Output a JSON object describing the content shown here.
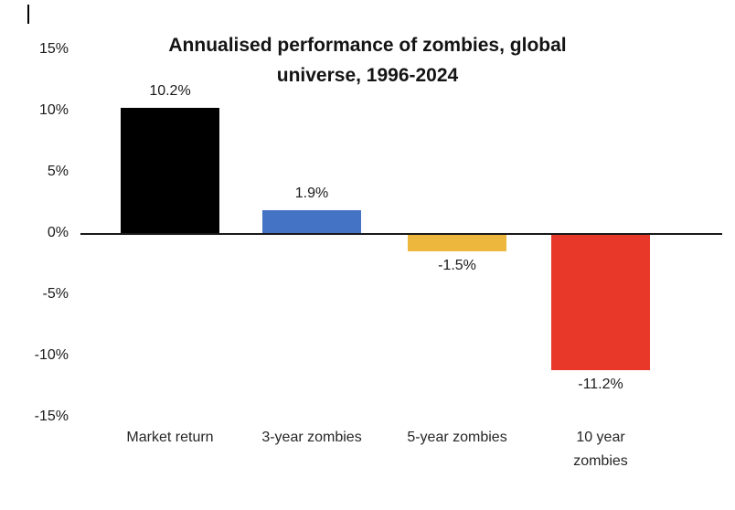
{
  "chart_data": {
    "type": "bar",
    "title": "Annualised performance of zombies, global universe, 1996-2024",
    "title_lines": [
      "Annualised performance of zombies, global",
      "universe, 1996-2024"
    ],
    "categories": [
      "Market return",
      "3-year zombies",
      "5-year zombies",
      "10 year zombies"
    ],
    "x_tick_labels": [
      "Market return",
      "3-year zombies",
      "5-year zombies",
      "10 year\nzombies"
    ],
    "values": [
      10.2,
      1.9,
      -1.5,
      -11.2
    ],
    "data_labels": [
      "10.2%",
      "1.9%",
      "-1.5%",
      "-11.2%"
    ],
    "bar_colors": [
      "#000000",
      "#4472c4",
      "#edb73e",
      "#e7382a"
    ],
    "y_ticks": [
      15,
      10,
      5,
      0,
      -5,
      -10,
      -15
    ],
    "y_tick_labels": [
      "15%",
      "10%",
      "5%",
      "0%",
      "-5%",
      "-10%",
      "-15%"
    ],
    "ylim": [
      -15,
      15
    ],
    "xlabel": "",
    "ylabel": "",
    "grid": false,
    "legend": "none",
    "background": "#ffffff"
  }
}
